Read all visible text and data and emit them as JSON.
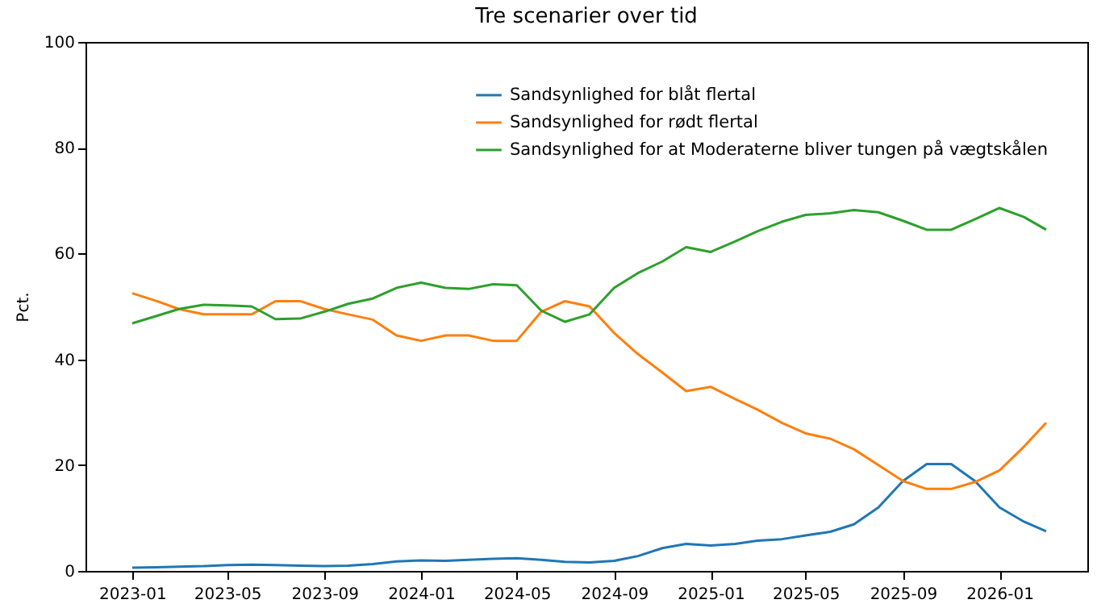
{
  "chart_data": {
    "type": "line",
    "title": "Tre scenarier over tid",
    "ylabel": "Pct.",
    "x": [
      "2023-01",
      "2023-02",
      "2023-03",
      "2023-04",
      "2023-05",
      "2023-06",
      "2023-07",
      "2023-08",
      "2023-09",
      "2023-10",
      "2023-11",
      "2023-12",
      "2024-01",
      "2024-02",
      "2024-03",
      "2024-04",
      "2024-05",
      "2024-06",
      "2024-07",
      "2024-08",
      "2024-09",
      "2024-10",
      "2024-11",
      "2024-12",
      "2025-01",
      "2025-02",
      "2025-03",
      "2025-04",
      "2025-05",
      "2025-06",
      "2025-07",
      "2025-08",
      "2025-09",
      "2025-10",
      "2025-11",
      "2025-12",
      "2026-01",
      "2026-02",
      "2026-03"
    ],
    "series": [
      {
        "name": "Sandsynlighed for blåt flertal",
        "color": "#1f77b4",
        "values": [
          0.6,
          0.7,
          0.8,
          0.9,
          1.1,
          1.2,
          1.1,
          1.0,
          0.9,
          1.0,
          1.3,
          1.8,
          2.0,
          1.9,
          2.1,
          2.3,
          2.4,
          2.1,
          1.7,
          1.6,
          1.9,
          2.8,
          4.3,
          5.1,
          4.8,
          5.1,
          5.7,
          6.0,
          6.7,
          7.4,
          8.8,
          12,
          17,
          20.2,
          20.2,
          17,
          12,
          9.3,
          7.5
        ]
      },
      {
        "name": "Sandsynlighed for rødt flertal",
        "color": "#ff7f0e",
        "values": [
          52.5,
          51,
          49.5,
          48.5,
          48.5,
          48.5,
          51,
          51,
          49.5,
          48.5,
          47.5,
          44.5,
          43.5,
          44.5,
          44.5,
          43.5,
          43.5,
          49,
          51,
          50,
          45,
          41,
          37.5,
          34,
          34.8,
          32.5,
          30.5,
          28,
          26,
          25,
          23,
          20,
          17,
          15.5,
          15.5,
          16.8,
          19,
          23.5,
          28
        ]
      },
      {
        "name": "Sandsynlighed for at Moderaterne bliver tungen på vægtskålen",
        "color": "#2ca02c",
        "values": [
          46.8,
          48.2,
          49.5,
          50.3,
          50.2,
          50,
          47.6,
          47.7,
          49,
          50.5,
          51.5,
          53.5,
          54.5,
          53.5,
          53.3,
          54.2,
          54,
          49.2,
          47.1,
          48.5,
          53.5,
          56.3,
          58.5,
          61.2,
          60.3,
          62.3,
          64.2,
          66,
          67.3,
          67.6,
          68.2,
          67.8,
          66.2,
          64.5,
          64.5,
          66.5,
          68.6,
          66.9,
          64.5
        ]
      }
    ],
    "xlim": [
      "2022-11-03",
      "2026-04-22"
    ],
    "xticks": [
      "2023-01",
      "2023-05",
      "2023-09",
      "2024-01",
      "2024-05",
      "2024-09",
      "2025-01",
      "2025-05",
      "2025-09",
      "2026-01"
    ],
    "ylim": [
      0,
      100
    ],
    "yticks": [
      0,
      20,
      40,
      60,
      80,
      100
    ],
    "grid": false,
    "legend": "top right",
    "marker": "none",
    "line_style": "solid"
  }
}
